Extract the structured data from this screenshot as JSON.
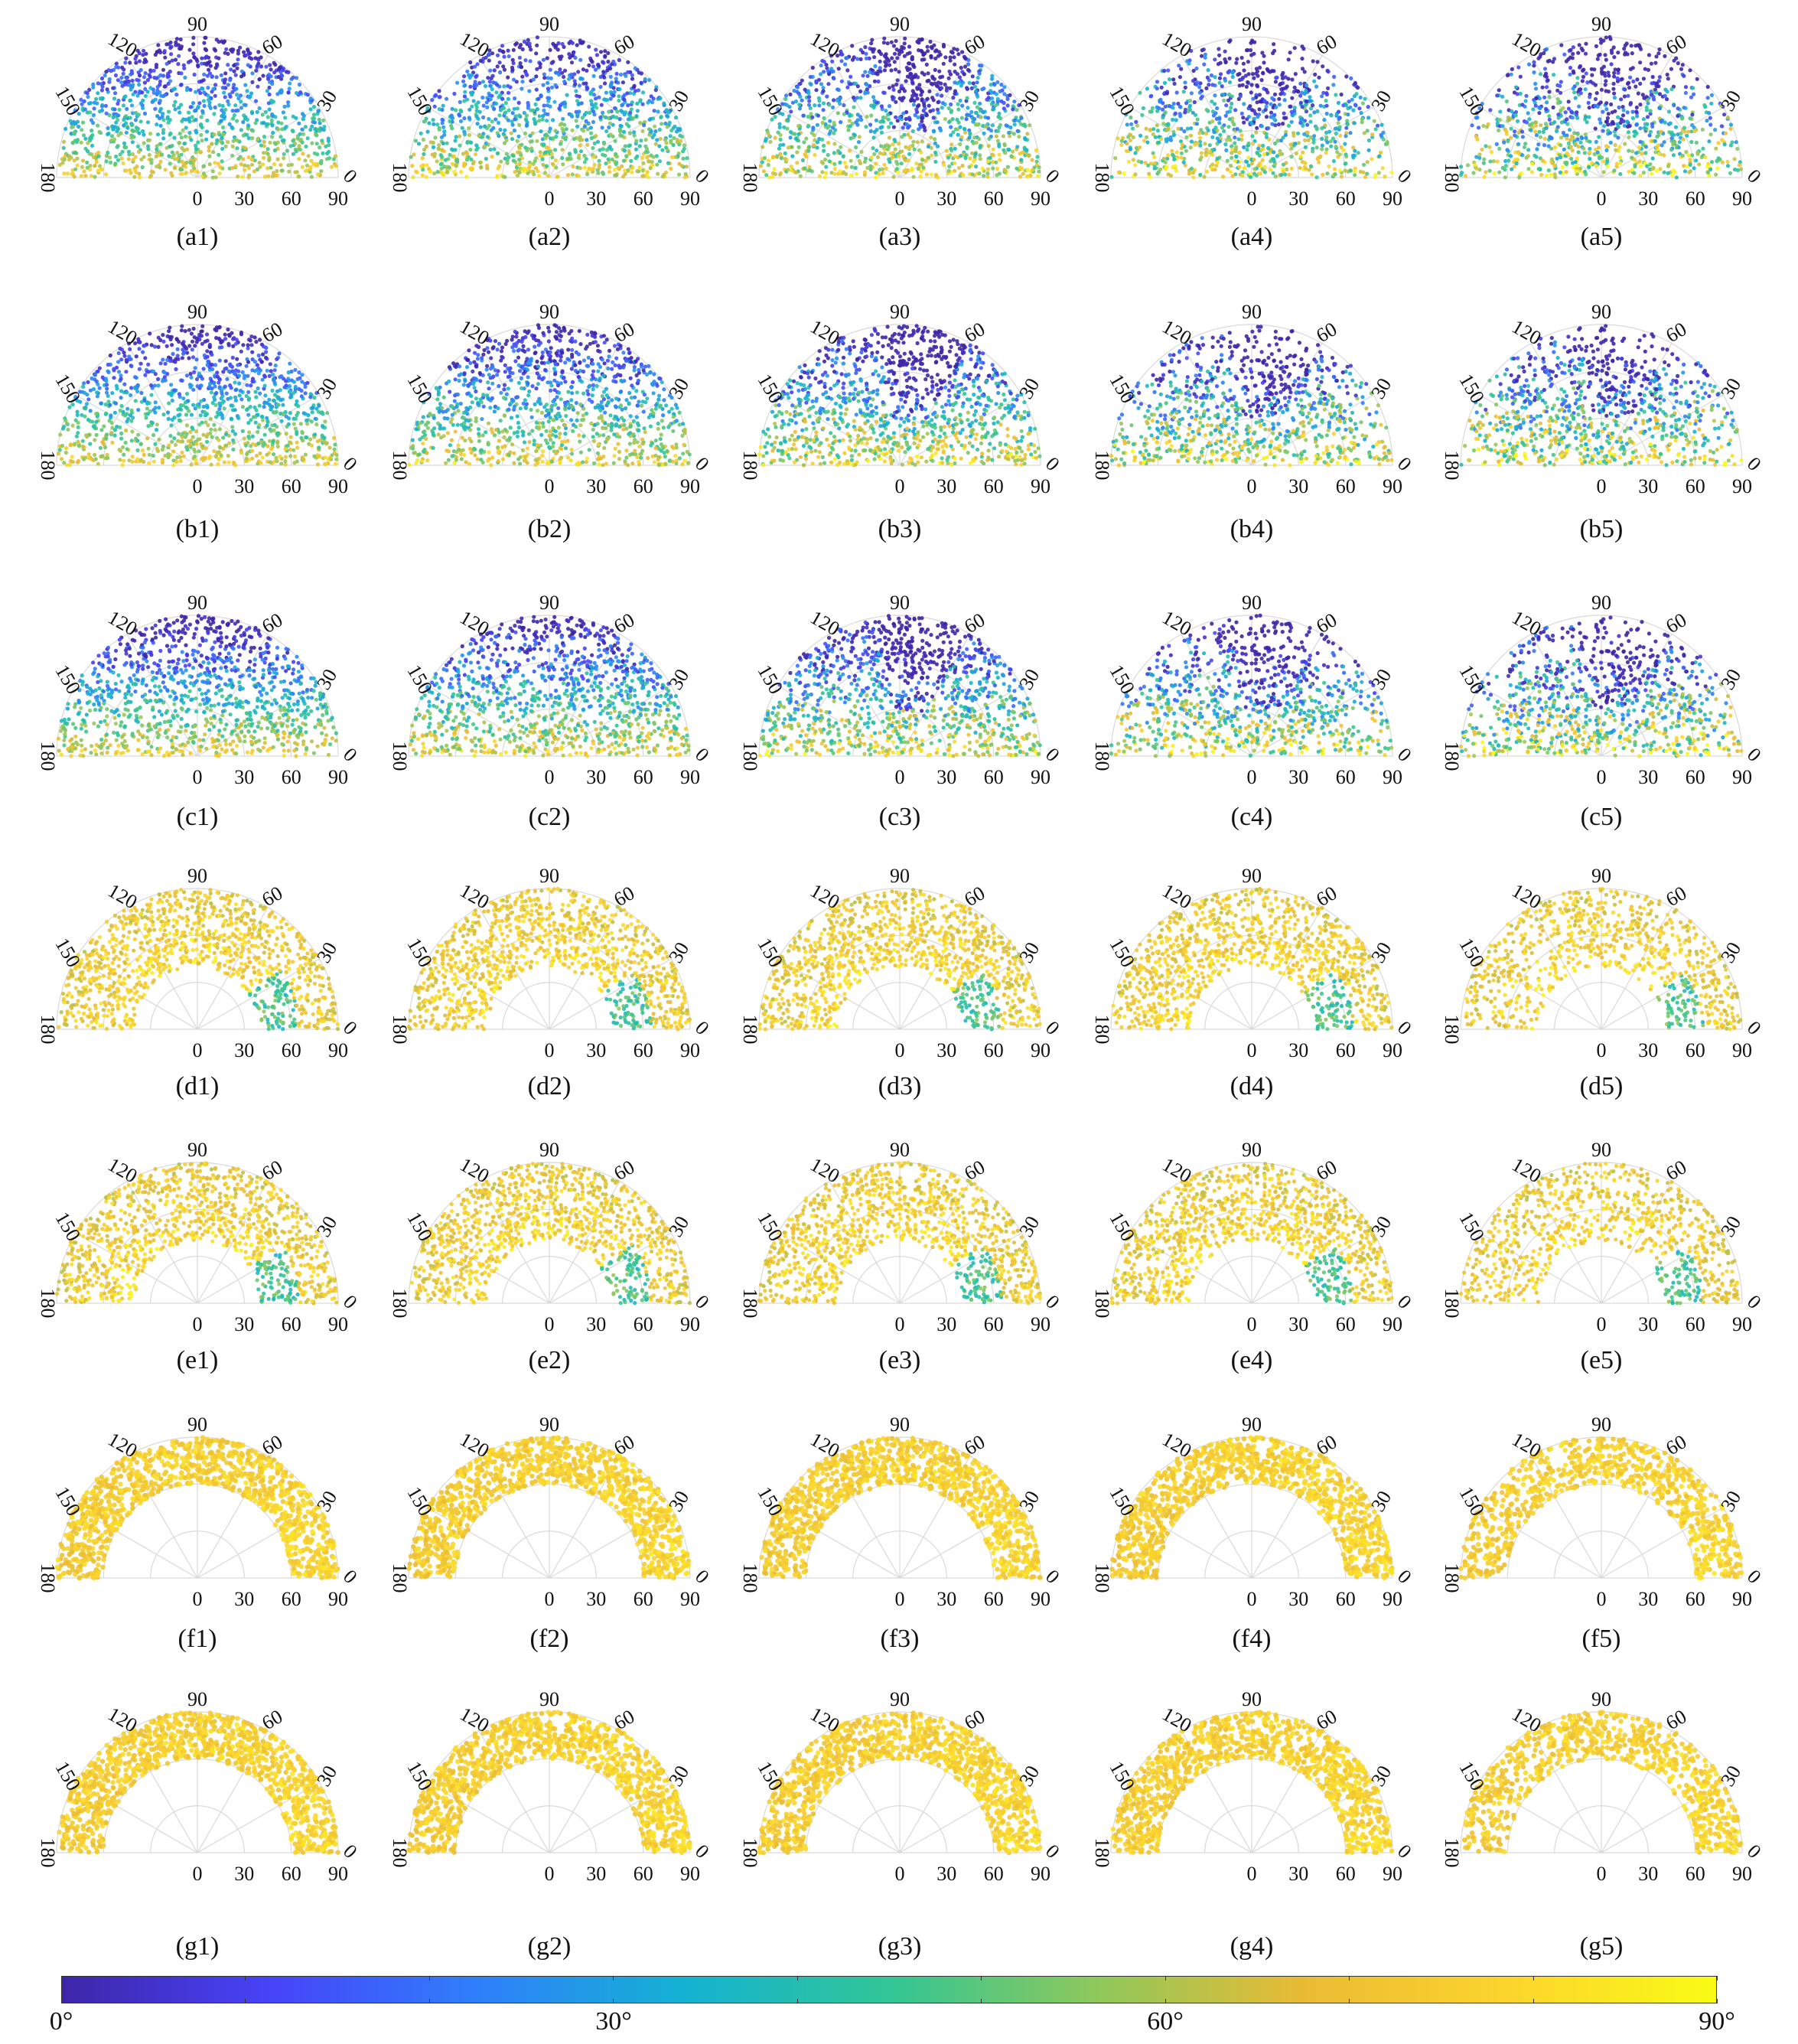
{
  "chart_data": {
    "type": "scatter",
    "layout": {
      "rows": 7,
      "cols": 5
    },
    "angular_tick_labels": [
      "0",
      "30",
      "60",
      "90",
      "120",
      "150",
      "180"
    ],
    "radial_tick_labels": [
      "0",
      "30",
      "60",
      "90"
    ],
    "panels": [
      {
        "id": "a1",
        "label": "(a1)",
        "r_min": 0
      },
      {
        "id": "a2",
        "label": "(a2)",
        "r_min": 0
      },
      {
        "id": "a3",
        "label": "(a3)",
        "r_min": 0
      },
      {
        "id": "a4",
        "label": "(a4)",
        "r_min": 0
      },
      {
        "id": "a5",
        "label": "(a5)",
        "r_min": 0
      },
      {
        "id": "b1",
        "label": "(b1)",
        "r_min": 0
      },
      {
        "id": "b2",
        "label": "(b2)",
        "r_min": 0
      },
      {
        "id": "b3",
        "label": "(b3)",
        "r_min": 0
      },
      {
        "id": "b4",
        "label": "(b4)",
        "r_min": 0
      },
      {
        "id": "b5",
        "label": "(b5)",
        "r_min": 0
      },
      {
        "id": "c1",
        "label": "(c1)",
        "r_min": 0
      },
      {
        "id": "c2",
        "label": "(c2)",
        "r_min": 0
      },
      {
        "id": "c3",
        "label": "(c3)",
        "r_min": 0
      },
      {
        "id": "c4",
        "label": "(c4)",
        "r_min": 0
      },
      {
        "id": "c5",
        "label": "(c5)",
        "r_min": 0
      },
      {
        "id": "d1",
        "label": "(d1)",
        "r_min": 40
      },
      {
        "id": "d2",
        "label": "(d2)",
        "r_min": 40
      },
      {
        "id": "d3",
        "label": "(d3)",
        "r_min": 40
      },
      {
        "id": "d4",
        "label": "(d4)",
        "r_min": 40
      },
      {
        "id": "d5",
        "label": "(d5)",
        "r_min": 40
      },
      {
        "id": "e1",
        "label": "(e1)",
        "r_min": 40
      },
      {
        "id": "e2",
        "label": "(e2)",
        "r_min": 40
      },
      {
        "id": "e3",
        "label": "(e3)",
        "r_min": 40
      },
      {
        "id": "e4",
        "label": "(e4)",
        "r_min": 40
      },
      {
        "id": "e5",
        "label": "(e5)",
        "r_min": 40
      },
      {
        "id": "f1",
        "label": "(f1)",
        "r_min": 60
      },
      {
        "id": "f2",
        "label": "(f2)",
        "r_min": 60
      },
      {
        "id": "f3",
        "label": "(f3)",
        "r_min": 60
      },
      {
        "id": "f4",
        "label": "(f4)",
        "r_min": 60
      },
      {
        "id": "f5",
        "label": "(f5)",
        "r_min": 60
      },
      {
        "id": "g1",
        "label": "(g1)",
        "r_min": 60
      },
      {
        "id": "g2",
        "label": "(g2)",
        "r_min": 60
      },
      {
        "id": "g3",
        "label": "(g3)",
        "r_min": 60
      },
      {
        "id": "g4",
        "label": "(g4)",
        "r_min": 60
      },
      {
        "id": "g5",
        "label": "(g5)",
        "r_min": 60
      }
    ],
    "colorbar": {
      "range": [
        0,
        90
      ],
      "tick_labels": [
        "0°",
        "30°",
        "60°",
        "90°"
      ],
      "colors": [
        "#3e26a8",
        "#4743f8",
        "#2f7ffb",
        "#14b2d3",
        "#31c695",
        "#8ec85b",
        "#e9bb34",
        "#fcd52c",
        "#f9fb15"
      ]
    }
  }
}
